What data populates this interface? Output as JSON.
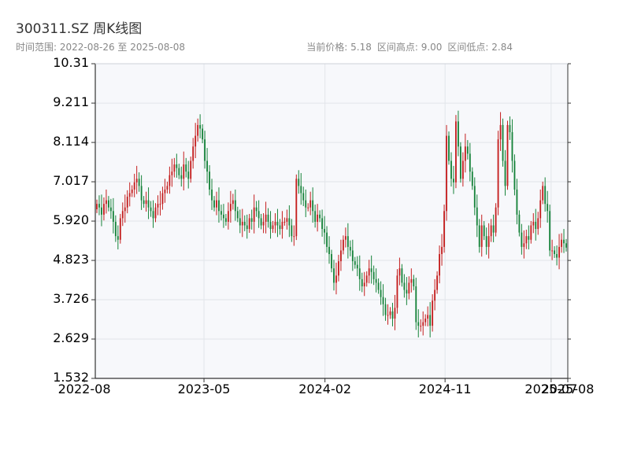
{
  "header": {
    "title": "300311.SZ 周K线图",
    "subtitle": "时间范围: 2022-08-26 至 2025-08-08",
    "current_price": "当前价格: 5.18",
    "range_high": "区间高点: 9.00",
    "range_low": "区间低点: 2.84"
  },
  "colors": {
    "up": "#c41e1e",
    "down": "#16833a",
    "plot_bg": "#f7f8fb",
    "grid": "#e2e5ea",
    "axis": "#333333"
  },
  "chart_data": {
    "type": "candlestick",
    "title": "300311.SZ 周K线图",
    "ylim": [
      1.532,
      10.31
    ],
    "y_ticks": [
      1.532,
      2.629,
      3.726,
      4.823,
      5.92,
      7.017,
      8.114,
      9.211,
      10.31
    ],
    "y_tick_labels": [
      "1.532",
      "2.629",
      "3.726",
      "4.823",
      "5.920",
      "7.017",
      "8.114",
      "9.211",
      "10.31"
    ],
    "x_ticks": [
      {
        "date": "2022-08-01",
        "label": "2022-08"
      },
      {
        "date": "2023-05-01",
        "label": "2023-05"
      },
      {
        "date": "2024-02-01",
        "label": "2024-02"
      },
      {
        "date": "2024-11-01",
        "label": "2024-11"
      },
      {
        "date": "2025-07-01",
        "label": "2025-07"
      },
      {
        "date": "2025-08-08",
        "label": "2025-08"
      }
    ],
    "xlim": [
      "2022-08-26",
      "2025-08-08"
    ],
    "grid": true,
    "current": 5.18,
    "high": 9.0,
    "low": 2.84,
    "closes": [
      6.4,
      6.3,
      6.1,
      6.4,
      6.5,
      6.3,
      6.2,
      5.9,
      5.5,
      5.4,
      6.0,
      6.2,
      6.3,
      6.6,
      6.7,
      6.8,
      7.0,
      7.1,
      6.9,
      6.5,
      6.4,
      6.5,
      6.3,
      6.2,
      6.0,
      6.3,
      6.4,
      6.4,
      6.7,
      6.8,
      6.9,
      7.2,
      7.3,
      7.5,
      7.4,
      7.2,
      7.1,
      7.5,
      7.3,
      7.1,
      7.6,
      8.0,
      8.3,
      8.6,
      8.5,
      8.2,
      7.6,
      7.3,
      6.8,
      6.5,
      6.3,
      6.5,
      6.2,
      6.1,
      6.0,
      5.9,
      6.2,
      6.4,
      6.5,
      6.2,
      6.0,
      5.8,
      5.9,
      5.8,
      5.7,
      6.0,
      5.9,
      6.3,
      6.2,
      6.0,
      5.8,
      5.9,
      6.1,
      5.9,
      5.7,
      5.8,
      5.9,
      5.8,
      5.7,
      5.9,
      5.9,
      6.0,
      5.8,
      5.5,
      5.5,
      7.1,
      6.9,
      6.7,
      6.5,
      6.3,
      6.3,
      6.5,
      6.2,
      5.9,
      6.1,
      6.0,
      5.7,
      5.6,
      5.2,
      5.0,
      4.6,
      4.2,
      4.4,
      4.8,
      5.1,
      5.4,
      5.5,
      5.2,
      5.1,
      4.8,
      4.7,
      4.6,
      4.3,
      4.1,
      4.2,
      4.4,
      4.6,
      4.5,
      4.3,
      4.2,
      4.0,
      3.8,
      3.6,
      3.3,
      3.3,
      3.4,
      3.2,
      3.5,
      4.4,
      4.6,
      4.2,
      4.0,
      3.9,
      4.2,
      4.3,
      4.1,
      3.1,
      3.0,
      3.0,
      3.1,
      3.2,
      3.3,
      3.0,
      3.7,
      4.0,
      4.4,
      5.0,
      5.2,
      6.2,
      8.3,
      7.6,
      7.1,
      7.0,
      8.7,
      8.0,
      7.1,
      7.6,
      8.0,
      7.8,
      7.3,
      6.9,
      6.3,
      5.8,
      5.2,
      5.8,
      5.5,
      5.2,
      5.5,
      5.8,
      5.6,
      6.3,
      8.2,
      8.6,
      7.6,
      6.9,
      8.6,
      8.4,
      7.6,
      6.8,
      6.1,
      5.6,
      5.2,
      5.3,
      5.5,
      5.4,
      5.8,
      5.9,
      5.7,
      6.0,
      6.5,
      6.9,
      6.4,
      6.2,
      5.1,
      5.1,
      5.0,
      4.9,
      5.2,
      5.4,
      5.3,
      5.18
    ]
  }
}
